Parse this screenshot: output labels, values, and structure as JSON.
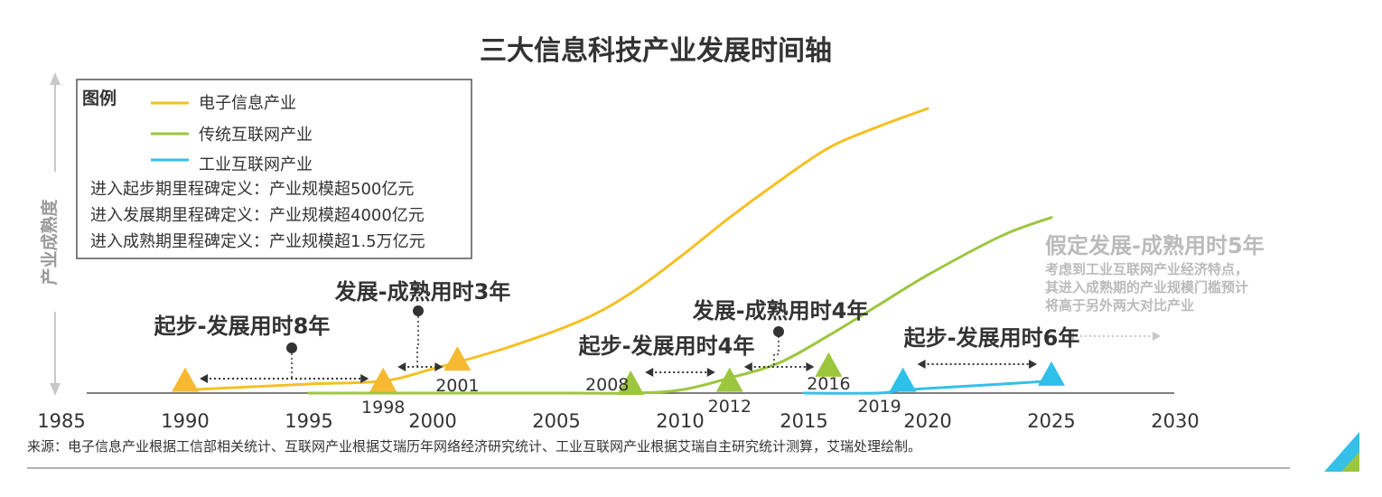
{
  "colors": {
    "electronic": "#f5c023",
    "internet": "#9cc63d",
    "industrial": "#35c0e8",
    "marker_electronic": "#f6b931",
    "marker_internet": "#9cc63d",
    "marker_industrial": "#2fc0ea"
  },
  "chart_data": {
    "type": "line",
    "title": "三大信息科技产业发展时间轴",
    "ylabel": "产业成熟度",
    "xlabel": "",
    "x_ticks": [
      1985,
      1990,
      1995,
      2000,
      2005,
      2010,
      2015,
      2020,
      2025,
      2030
    ],
    "xlim": [
      1985,
      2030
    ],
    "ylim": [
      0,
      100
    ],
    "legend_title": "图例",
    "legend_position": "top-left",
    "series": [
      {
        "name": "电子信息产业",
        "color_key": "electronic",
        "points": [
          [
            1990,
            1
          ],
          [
            1995,
            3
          ],
          [
            1998,
            4
          ],
          [
            2000,
            8
          ],
          [
            2003,
            15
          ],
          [
            2006,
            24
          ],
          [
            2008,
            33
          ],
          [
            2010,
            45
          ],
          [
            2012,
            58
          ],
          [
            2014,
            70
          ],
          [
            2016,
            81
          ],
          [
            2018,
            88
          ],
          [
            2020,
            94
          ]
        ],
        "milestones": [
          {
            "year": 1990,
            "label": "",
            "value": 4
          },
          {
            "year": 1998,
            "label": "1998",
            "value": 4
          },
          {
            "year": 2001,
            "label": "2001",
            "value": 11
          }
        ]
      },
      {
        "name": "传统互联网产业",
        "color_key": "internet",
        "points": [
          [
            1995,
            0
          ],
          [
            2000,
            0
          ],
          [
            2005,
            0
          ],
          [
            2008,
            0
          ],
          [
            2010,
            1
          ],
          [
            2012,
            5
          ],
          [
            2014,
            10
          ],
          [
            2016,
            19
          ],
          [
            2018,
            29
          ],
          [
            2020,
            39
          ],
          [
            2023,
            52
          ],
          [
            2025,
            58
          ]
        ],
        "milestones": [
          {
            "year": 2008,
            "label": "2008",
            "value": 3
          },
          {
            "year": 2012,
            "label": "2012",
            "value": 4
          },
          {
            "year": 2016,
            "label": "2016",
            "value": 9
          }
        ]
      },
      {
        "name": "工业互联网产业",
        "color_key": "industrial",
        "points": [
          [
            2015,
            0
          ],
          [
            2018,
            0
          ],
          [
            2019,
            1
          ],
          [
            2021,
            2
          ],
          [
            2023,
            3
          ],
          [
            2025,
            4
          ]
        ],
        "milestones": [
          {
            "year": 2019,
            "label": "2019",
            "value": 4
          },
          {
            "year": 2025,
            "label": "",
            "value": 6
          }
        ]
      }
    ],
    "definitions": [
      "进入起步期里程碑定义：产业规模超500亿元",
      "进入发展期里程碑定义：产业规模超4000亿元",
      "进入成熟期里程碑定义：产业规模超1.5万亿元"
    ],
    "annotations": [
      {
        "text": "起步-发展用时8年",
        "from": 1990,
        "to": 1998
      },
      {
        "text": "发展-成熟用时3年",
        "from": 1998,
        "to": 2001
      },
      {
        "text": "起步-发展用时4年",
        "from": 2008,
        "to": 2012
      },
      {
        "text": "发展-成熟用时4年",
        "from": 2012,
        "to": 2016
      },
      {
        "text": "起步-发展用时6年",
        "from": 2019,
        "to": 2025
      },
      {
        "text": "假定发展-成熟用时5年",
        "from": 2025,
        "to": 2030,
        "note_lines": [
          "考虑到工业互联网产业经济特点，",
          "其进入成熟期的产业规模门槛预计",
          "将高于另外两大对比产业"
        ]
      }
    ]
  },
  "source": "来源：电子信息产业根据工信部相关统计、互联网产业根据艾瑞历年网络经济研究统计、工业互联网产业根据艾瑞自主研究统计测算，艾瑞处理绘制。"
}
